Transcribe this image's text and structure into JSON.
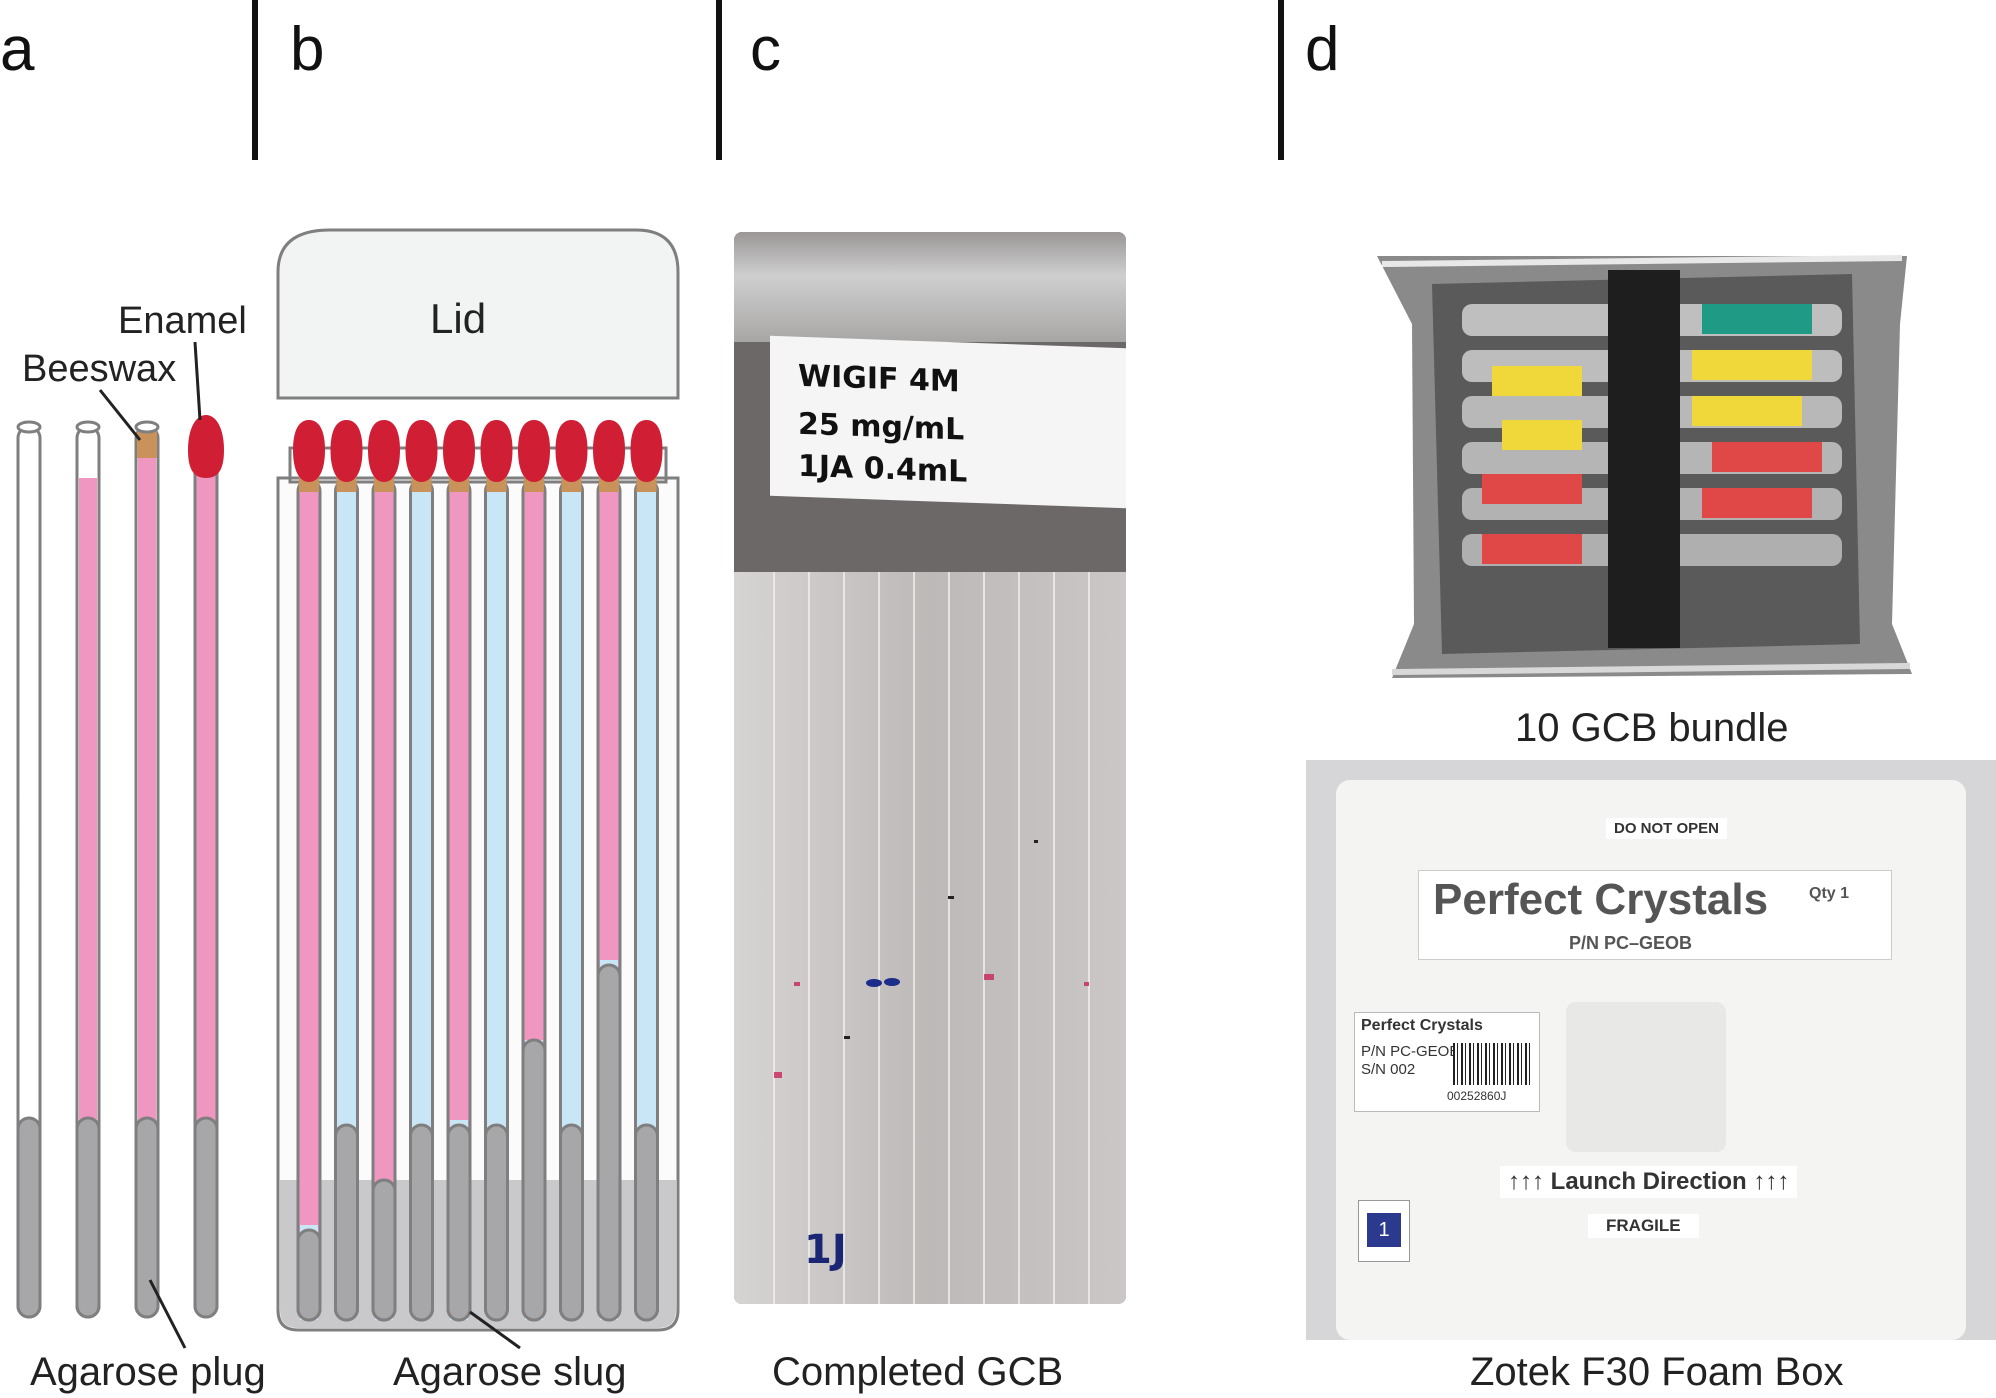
{
  "panels": {
    "a": {
      "letter": "a",
      "labels": {
        "enamel": "Enamel",
        "beeswax": "Beeswax",
        "agarose_plug": "Agarose plug"
      }
    },
    "b": {
      "letter": "b",
      "labels": {
        "lid": "Lid",
        "agarose_slug": "Agarose slug"
      }
    },
    "c": {
      "letter": "c",
      "caption": "Completed GCB",
      "handwriting": {
        "line1": "WIGIF  4M",
        "line2": "25 mg/mL",
        "line3": "1JA  0.4mL",
        "bottom": "1J"
      }
    },
    "d": {
      "letter": "d",
      "caption_top": "10 GCB bundle",
      "caption_bottom": "Zotek F30 Foam Box",
      "box_labels": {
        "do_not_open": "DO NOT OPEN",
        "brand": "Perfect Crystals",
        "qty": "Qty 1",
        "part_number": "P/N PC–GEOB",
        "sticker_brand": "Perfect Crystals",
        "sticker_pn": "P/N PC-GEOB",
        "sticker_sn": "S/N 002",
        "barcode_text": "00252860J",
        "launch": "↑↑↑ Launch Direction ↑↑↑",
        "fragile": "FRAGILE",
        "hazard_number": "1"
      }
    }
  },
  "colors": {
    "enamel": "#d01f35",
    "beeswax": "#c8925a",
    "pink": "#ef97c0",
    "blue": "#c9e6f7",
    "agarose": "#a7a7a9",
    "outline": "#7f7f7f",
    "lid": "#f2f4f4"
  }
}
